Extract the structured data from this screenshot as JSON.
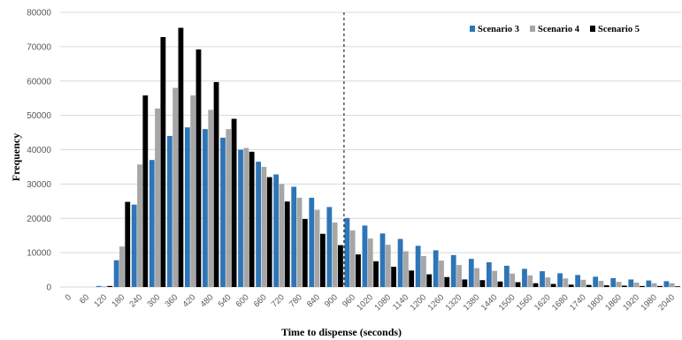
{
  "chart_data": {
    "type": "bar",
    "title": "",
    "xlabel": "Time to dispense (seconds)",
    "ylabel": "Frequency",
    "ylim": [
      0,
      80000
    ],
    "yticks": [
      0,
      10000,
      20000,
      30000,
      40000,
      50000,
      60000,
      70000,
      80000
    ],
    "grid": true,
    "legend_position": "top-right",
    "categories": [
      "0",
      "60",
      "120",
      "180",
      "240",
      "300",
      "360",
      "420",
      "480",
      "540",
      "600",
      "660",
      "720",
      "780",
      "840",
      "900",
      "960",
      "1020",
      "1080",
      "1140",
      "1200",
      "1260",
      "1320",
      "1380",
      "1440",
      "1500",
      "1560",
      "1620",
      "1680",
      "1740",
      "1800",
      "1860",
      "1920",
      "1980",
      "2040"
    ],
    "reference_line": {
      "category": "930",
      "style": "dashed"
    },
    "series": [
      {
        "name": "Scenario 3",
        "color": "#2E75B6",
        "values": [
          0,
          0,
          300,
          7800,
          24000,
          37000,
          44000,
          46500,
          46000,
          43500,
          40000,
          36500,
          32800,
          29200,
          26000,
          23300,
          20100,
          17900,
          15600,
          14000,
          12000,
          10700,
          9300,
          8200,
          7200,
          6200,
          5300,
          4600,
          4000,
          3500,
          3000,
          2600,
          2200,
          1900,
          1700
        ]
      },
      {
        "name": "Scenario 4",
        "color": "#A6A6A6",
        "values": [
          0,
          0,
          200,
          11800,
          35700,
          52000,
          58000,
          55800,
          51600,
          46000,
          40500,
          35000,
          30000,
          26000,
          22500,
          18800,
          16500,
          14100,
          12300,
          10400,
          9000,
          7700,
          6400,
          5500,
          4700,
          3900,
          3400,
          2800,
          2500,
          2100,
          1800,
          1500,
          1300,
          1100,
          1100
        ]
      },
      {
        "name": "Scenario 5",
        "color": "#000000",
        "values": [
          0,
          0,
          300,
          24800,
          55800,
          72800,
          75500,
          69200,
          59700,
          49000,
          39400,
          32000,
          24900,
          19800,
          15500,
          12200,
          9500,
          7500,
          5900,
          4800,
          3700,
          2900,
          2200,
          2000,
          1600,
          1400,
          1100,
          900,
          700,
          600,
          500,
          400,
          300,
          300,
          200
        ]
      }
    ]
  }
}
